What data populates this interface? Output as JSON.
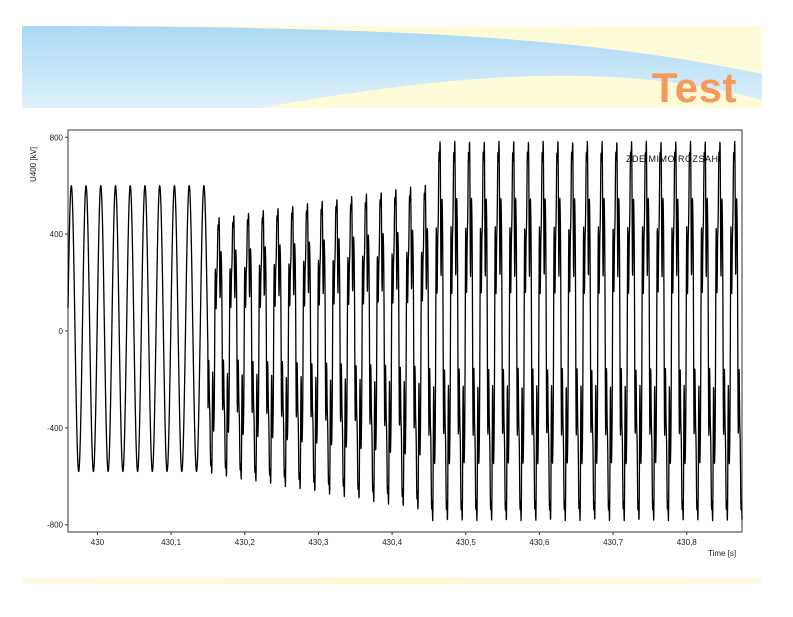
{
  "slide": {
    "title": "Test"
  },
  "colors": {
    "title": "#f39a5c",
    "band_blue": "#bfe3f7",
    "band_yellow": "#fffbd6",
    "signal": "#000000"
  },
  "chart_data": {
    "type": "line",
    "title": "",
    "xlabel": "Time [s]",
    "ylabel": "U400 [kV]",
    "xlim": [
      429.96,
      430.875
    ],
    "ylim": [
      -830,
      830
    ],
    "x_ticks": [
      430,
      430.1,
      430.2,
      430.3,
      430.4,
      430.5,
      430.6,
      430.7,
      430.8
    ],
    "x_tick_labels": [
      "430",
      "430,1",
      "430,2",
      "430,3",
      "430,4",
      "430,5",
      "430,6",
      "430,7",
      "430,8"
    ],
    "y_ticks": [
      -800,
      -400,
      0,
      400,
      800
    ],
    "y_tick_labels": [
      "-800",
      "-400",
      "0",
      "400",
      "800"
    ],
    "annotation": "ZDE MIMO ROZSAH",
    "grid": false,
    "frequency_hz": 50,
    "segments": [
      {
        "t_start": 429.96,
        "t_end": 430.15,
        "peak_kv": 600,
        "trough_kv": -580,
        "form": "sinusoid"
      },
      {
        "t_start": 430.15,
        "t_end": 430.45,
        "peak_kv_start": 470,
        "peak_kv_end": 620,
        "trough_kv_start": -600,
        "trough_kv_end": -760,
        "form": "distorted"
      },
      {
        "t_start": 430.45,
        "t_end": 430.875,
        "peak_kv": 800,
        "trough_kv": -800,
        "form": "distorted, clipped at range"
      }
    ]
  }
}
